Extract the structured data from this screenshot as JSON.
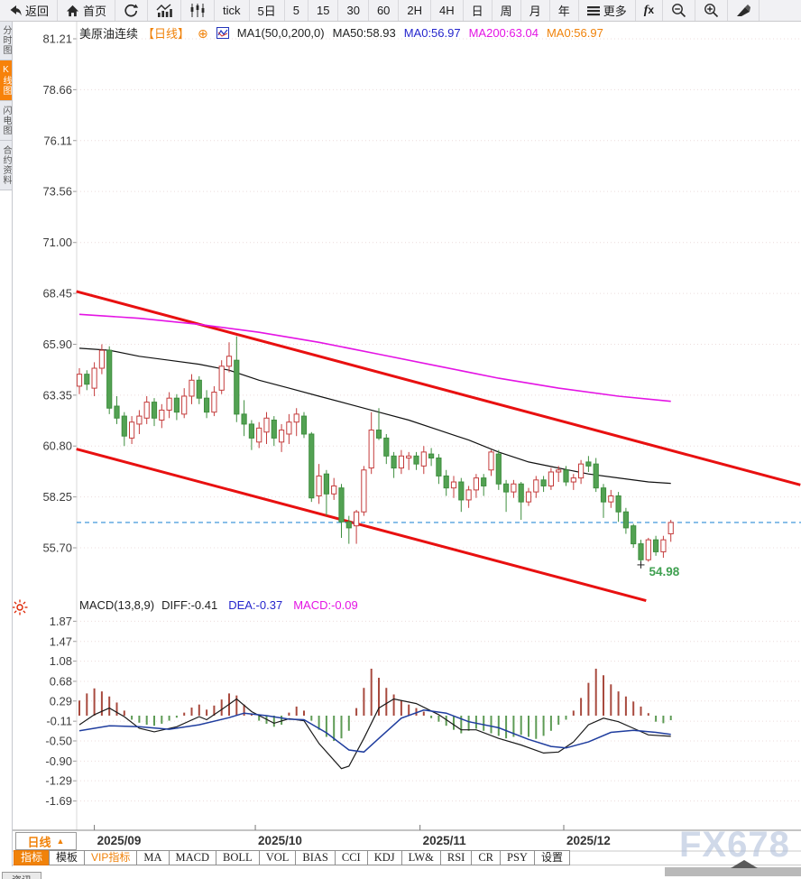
{
  "window": {
    "watermark": "FX678"
  },
  "toolbar": {
    "items": [
      {
        "name": "back",
        "icon": "back-arrow",
        "label": "返回"
      },
      {
        "name": "home",
        "icon": "home-icon",
        "label": "首页"
      },
      {
        "name": "refresh",
        "icon": "refresh-icon",
        "label": ""
      },
      {
        "name": "trend-chart",
        "icon": "bar-chart-icon",
        "label": ""
      },
      {
        "name": "candlestick-view",
        "icon": "candles-icon",
        "label": ""
      },
      {
        "name": "tick",
        "icon": "",
        "label": "tick"
      },
      {
        "name": "5-day",
        "icon": "",
        "label": "5日"
      },
      {
        "name": "5-min",
        "icon": "",
        "label": "5"
      },
      {
        "name": "15-min",
        "icon": "",
        "label": "15"
      },
      {
        "name": "30-min",
        "icon": "",
        "label": "30"
      },
      {
        "name": "60-min",
        "icon": "",
        "label": "60"
      },
      {
        "name": "2-hour",
        "icon": "",
        "label": "2H"
      },
      {
        "name": "4-hour",
        "icon": "",
        "label": "4H"
      },
      {
        "name": "daily",
        "icon": "",
        "label": "日"
      },
      {
        "name": "weekly",
        "icon": "",
        "label": "周"
      },
      {
        "name": "monthly",
        "icon": "",
        "label": "月"
      },
      {
        "name": "yearly",
        "icon": "",
        "label": "年"
      },
      {
        "name": "more",
        "icon": "menu-icon",
        "label": "更多"
      },
      {
        "name": "formula",
        "icon": "fx-icon",
        "label": ""
      },
      {
        "name": "zoom-out",
        "icon": "zoom-out-icon",
        "label": ""
      },
      {
        "name": "zoom-in",
        "icon": "zoom-in-icon",
        "label": ""
      },
      {
        "name": "draw-tool",
        "icon": "draw-icon",
        "label": ""
      }
    ]
  },
  "sidebar": {
    "items": [
      {
        "label": "分时图",
        "active": false
      },
      {
        "label": "K线图",
        "active": true
      },
      {
        "label": "闪电图",
        "active": false
      },
      {
        "label": "合约资料",
        "active": false
      }
    ]
  },
  "chart_header": {
    "symbol": "美原油连续",
    "period_tag": "【日线】",
    "ma_formula": "MA1(50,0,200,0)",
    "ma50_label": "MA50:58.93",
    "ma0_blue_label": "MA0:56.97",
    "ma200_label": "MA200:63.04",
    "ma0_orange_label": "MA0:56.97"
  },
  "macd_header": {
    "formula": "MACD(13,8,9)",
    "diff_label": "DIFF:-0.41",
    "dea_label": "DEA:-0.37",
    "macd_label": "MACD:-0.09"
  },
  "bottom": {
    "period_selector": "日线",
    "period_arrow": "▲",
    "news_tab": "资讯",
    "tabs": [
      {
        "label": "指标",
        "style": "active"
      },
      {
        "label": "模板",
        "style": ""
      },
      {
        "label": "VIP指标",
        "style": "orange"
      },
      {
        "label": "MA",
        "style": ""
      },
      {
        "label": "MACD",
        "style": ""
      },
      {
        "label": "BOLL",
        "style": ""
      },
      {
        "label": "VOL",
        "style": ""
      },
      {
        "label": "BIAS",
        "style": ""
      },
      {
        "label": "CCI",
        "style": ""
      },
      {
        "label": "KDJ",
        "style": ""
      },
      {
        "label": "LW&",
        "style": ""
      },
      {
        "label": "RSI",
        "style": ""
      },
      {
        "label": "CR",
        "style": ""
      },
      {
        "label": "PSY",
        "style": ""
      },
      {
        "label": "设置",
        "style": ""
      }
    ]
  },
  "colors": {
    "accent_orange": "#f0820a",
    "candle_up": "#c43c3c",
    "candle_down": "#53a253",
    "trend_line": "#e81010",
    "ma50": "#111111",
    "ma200": "#e414e4",
    "dea_line": "#1f3d9e",
    "diff_line": "#1a1a1a",
    "current_price_line": "#2d8ed6",
    "low_label": "#3fa050"
  },
  "chart_data": {
    "type": "candlestick",
    "title": "美原油连续 日线 (US Crude Oil Continuous, Daily)",
    "price_axis_ticks": [
      81.21,
      78.66,
      76.11,
      73.56,
      71.0,
      68.45,
      65.9,
      63.35,
      60.8,
      58.25,
      55.7
    ],
    "macd_axis_ticks": [
      1.87,
      1.47,
      1.08,
      0.68,
      0.29,
      -0.11,
      -0.5,
      -0.9,
      -1.29,
      -1.69
    ],
    "x_labels": [
      {
        "text": "2025/09",
        "index": 2
      },
      {
        "text": "2025/10",
        "index": 23.5
      },
      {
        "text": "2025/11",
        "index": 45.5
      },
      {
        "text": "2025/12",
        "index": 64.7
      }
    ],
    "current_price": 56.97,
    "low_marker": {
      "index": 75,
      "price": 54.98,
      "label": "54.98"
    },
    "candles": [
      [
        63.8,
        64.7,
        63.4,
        64.4
      ],
      [
        64.4,
        64.6,
        63.6,
        63.9
      ],
      [
        63.7,
        65.0,
        63.3,
        64.7
      ],
      [
        64.7,
        65.9,
        64.4,
        65.6
      ],
      [
        65.6,
        65.8,
        62.4,
        62.7
      ],
      [
        62.8,
        63.3,
        61.9,
        62.2
      ],
      [
        62.3,
        62.5,
        60.8,
        61.3
      ],
      [
        61.2,
        62.3,
        60.9,
        62.0
      ],
      [
        61.9,
        62.6,
        61.4,
        62.3
      ],
      [
        62.2,
        63.3,
        61.9,
        63.0
      ],
      [
        63.0,
        63.2,
        61.8,
        62.2
      ],
      [
        62.1,
        62.9,
        61.7,
        62.6
      ],
      [
        62.6,
        63.5,
        62.2,
        63.2
      ],
      [
        63.2,
        63.4,
        62.1,
        62.5
      ],
      [
        62.4,
        63.7,
        62.2,
        63.3
      ],
      [
        63.3,
        64.4,
        62.9,
        64.1
      ],
      [
        64.1,
        64.3,
        62.9,
        63.2
      ],
      [
        63.2,
        63.6,
        62.2,
        62.5
      ],
      [
        62.5,
        63.8,
        62.3,
        63.5
      ],
      [
        63.6,
        65.1,
        63.4,
        64.8
      ],
      [
        64.8,
        66.0,
        64.5,
        65.3
      ],
      [
        65.1,
        66.3,
        62.0,
        62.4
      ],
      [
        62.4,
        63.1,
        61.3,
        61.9
      ],
      [
        61.9,
        62.1,
        60.6,
        61.2
      ],
      [
        61.0,
        62.0,
        60.7,
        61.7
      ],
      [
        61.5,
        62.5,
        60.9,
        62.2
      ],
      [
        62.1,
        62.3,
        60.8,
        61.2
      ],
      [
        61.0,
        61.9,
        60.5,
        61.6
      ],
      [
        61.4,
        62.4,
        60.9,
        62.0
      ],
      [
        62.0,
        62.7,
        61.3,
        62.4
      ],
      [
        62.3,
        62.5,
        61.2,
        61.4
      ],
      [
        61.4,
        61.5,
        58.0,
        58.2
      ],
      [
        58.3,
        59.9,
        57.9,
        59.3
      ],
      [
        59.4,
        59.6,
        57.3,
        58.4
      ],
      [
        58.4,
        59.2,
        58.1,
        58.8
      ],
      [
        58.7,
        58.9,
        56.2,
        57.0
      ],
      [
        57.0,
        57.3,
        55.9,
        56.7
      ],
      [
        56.8,
        57.6,
        55.9,
        57.5
      ],
      [
        57.5,
        59.8,
        57.3,
        59.6
      ],
      [
        59.7,
        62.5,
        59.4,
        61.6
      ],
      [
        61.6,
        62.7,
        61.1,
        61.2
      ],
      [
        61.2,
        61.4,
        59.9,
        60.3
      ],
      [
        60.3,
        60.5,
        59.2,
        59.7
      ],
      [
        59.7,
        60.6,
        59.4,
        60.3
      ],
      [
        60.2,
        60.5,
        59.6,
        60.3
      ],
      [
        60.3,
        60.5,
        59.6,
        59.9
      ],
      [
        59.8,
        60.8,
        59.4,
        60.5
      ],
      [
        60.4,
        60.7,
        59.8,
        60.2
      ],
      [
        60.2,
        60.4,
        58.9,
        59.3
      ],
      [
        59.3,
        59.6,
        58.3,
        58.7
      ],
      [
        58.7,
        59.3,
        58.2,
        59.0
      ],
      [
        59.0,
        59.2,
        57.5,
        58.1
      ],
      [
        58.1,
        58.8,
        57.7,
        58.6
      ],
      [
        58.6,
        59.4,
        58.2,
        59.2
      ],
      [
        59.2,
        59.4,
        58.3,
        58.8
      ],
      [
        59.6,
        60.6,
        59.3,
        60.5
      ],
      [
        60.4,
        60.6,
        58.6,
        58.9
      ],
      [
        58.9,
        59.1,
        57.5,
        58.5
      ],
      [
        58.5,
        59.1,
        58.2,
        58.9
      ],
      [
        58.9,
        59.0,
        57.1,
        58.0
      ],
      [
        58.0,
        58.7,
        57.8,
        58.5
      ],
      [
        58.5,
        59.3,
        58.2,
        59.1
      ],
      [
        59.1,
        59.3,
        58.5,
        58.8
      ],
      [
        58.8,
        59.7,
        58.6,
        59.5
      ],
      [
        59.5,
        59.8,
        59.0,
        59.6
      ],
      [
        59.6,
        59.8,
        58.8,
        59.0
      ],
      [
        59.0,
        59.4,
        58.6,
        59.2
      ],
      [
        59.2,
        60.1,
        58.9,
        59.9
      ],
      [
        60.0,
        60.3,
        59.5,
        59.8
      ],
      [
        59.9,
        60.2,
        58.5,
        58.7
      ],
      [
        58.7,
        58.9,
        57.2,
        58.0
      ],
      [
        58.0,
        58.6,
        57.7,
        58.3
      ],
      [
        58.3,
        58.5,
        57.0,
        57.5
      ],
      [
        57.5,
        57.7,
        56.4,
        56.7
      ],
      [
        56.8,
        56.9,
        55.7,
        55.9
      ],
      [
        55.9,
        56.1,
        54.98,
        55.1
      ],
      [
        55.1,
        56.2,
        55.0,
        56.1
      ],
      [
        56.1,
        56.3,
        55.3,
        55.5
      ],
      [
        55.5,
        56.3,
        55.2,
        56.1
      ],
      [
        56.4,
        57.1,
        56.0,
        56.97
      ]
    ],
    "ma50_points": [
      [
        0,
        65.7
      ],
      [
        4,
        65.6
      ],
      [
        8,
        65.3
      ],
      [
        12,
        65.1
      ],
      [
        16,
        64.9
      ],
      [
        20,
        64.6
      ],
      [
        24,
        64.1
      ],
      [
        28,
        63.7
      ],
      [
        32,
        63.3
      ],
      [
        36,
        62.9
      ],
      [
        40,
        62.5
      ],
      [
        44,
        62.1
      ],
      [
        48,
        61.6
      ],
      [
        52,
        61.1
      ],
      [
        56,
        60.5
      ],
      [
        60,
        60.0
      ],
      [
        64,
        59.7
      ],
      [
        68,
        59.4
      ],
      [
        72,
        59.2
      ],
      [
        76,
        59.0
      ],
      [
        79,
        58.93
      ]
    ],
    "ma200_points": [
      [
        0,
        67.4
      ],
      [
        8,
        67.2
      ],
      [
        16,
        66.9
      ],
      [
        24,
        66.5
      ],
      [
        32,
        66.0
      ],
      [
        40,
        65.4
      ],
      [
        48,
        64.8
      ],
      [
        56,
        64.2
      ],
      [
        64,
        63.7
      ],
      [
        72,
        63.3
      ],
      [
        79,
        63.04
      ]
    ],
    "trend_channel": {
      "upper": [
        [
          -0.4,
          68.55
        ],
        [
          96.3,
          58.85
        ]
      ],
      "lower": [
        [
          -0.4,
          60.65
        ],
        [
          75.7,
          53.05
        ]
      ]
    },
    "macd": {
      "hist": [
        0.3,
        0.44,
        0.54,
        0.48,
        0.38,
        0.26,
        0.1,
        -0.08,
        -0.14,
        -0.18,
        -0.2,
        -0.16,
        -0.1,
        -0.04,
        0.06,
        0.16,
        0.22,
        0.12,
        0.2,
        0.32,
        0.44,
        0.4,
        0.22,
        0.04,
        -0.1,
        -0.16,
        -0.22,
        -0.18,
        0.06,
        0.18,
        0.1,
        -0.1,
        -0.28,
        -0.42,
        -0.5,
        -0.45,
        -0.3,
        0.15,
        0.55,
        0.93,
        0.75,
        0.55,
        0.42,
        0.3,
        0.22,
        0.15,
        0.08,
        -0.05,
        -0.12,
        -0.2,
        -0.28,
        -0.35,
        -0.3,
        -0.26,
        -0.3,
        -0.35,
        -0.4,
        -0.45,
        -0.42,
        -0.38,
        -0.42,
        -0.46,
        -0.4,
        -0.3,
        -0.18,
        -0.08,
        0.1,
        0.35,
        0.65,
        0.93,
        0.8,
        0.62,
        0.48,
        0.38,
        0.28,
        0.18,
        0.05,
        -0.12,
        -0.15,
        -0.09
      ],
      "diff_points": [
        [
          0,
          -0.18
        ],
        [
          2,
          0.02
        ],
        [
          4,
          0.15
        ],
        [
          6,
          -0.02
        ],
        [
          8,
          -0.25
        ],
        [
          10,
          -0.32
        ],
        [
          13,
          -0.22
        ],
        [
          16,
          -0.02
        ],
        [
          17,
          -0.08
        ],
        [
          19,
          0.12
        ],
        [
          21,
          0.33
        ],
        [
          23,
          0.08
        ],
        [
          26,
          -0.15
        ],
        [
          28,
          -0.06
        ],
        [
          30,
          -0.1
        ],
        [
          32,
          -0.55
        ],
        [
          35,
          -1.05
        ],
        [
          36,
          -1.0
        ],
        [
          38,
          -0.45
        ],
        [
          40,
          0.15
        ],
        [
          42,
          0.33
        ],
        [
          45,
          0.24
        ],
        [
          48,
          0.02
        ],
        [
          51,
          -0.28
        ],
        [
          53,
          -0.28
        ],
        [
          56,
          -0.45
        ],
        [
          59,
          -0.58
        ],
        [
          62,
          -0.74
        ],
        [
          64,
          -0.72
        ],
        [
          66,
          -0.52
        ],
        [
          68,
          -0.18
        ],
        [
          70,
          -0.05
        ],
        [
          72,
          -0.12
        ],
        [
          74,
          -0.25
        ],
        [
          76,
          -0.38
        ],
        [
          79,
          -0.41
        ]
      ],
      "dea_points": [
        [
          0,
          -0.3
        ],
        [
          4,
          -0.2
        ],
        [
          8,
          -0.22
        ],
        [
          12,
          -0.27
        ],
        [
          16,
          -0.18
        ],
        [
          20,
          -0.04
        ],
        [
          22,
          0.05
        ],
        [
          25,
          0.0
        ],
        [
          28,
          -0.07
        ],
        [
          30,
          -0.08
        ],
        [
          33,
          -0.34
        ],
        [
          36,
          -0.68
        ],
        [
          38,
          -0.72
        ],
        [
          40,
          -0.45
        ],
        [
          43,
          -0.05
        ],
        [
          46,
          0.11
        ],
        [
          49,
          0.05
        ],
        [
          52,
          -0.12
        ],
        [
          56,
          -0.24
        ],
        [
          60,
          -0.47
        ],
        [
          63,
          -0.61
        ],
        [
          65,
          -0.64
        ],
        [
          68,
          -0.52
        ],
        [
          71,
          -0.33
        ],
        [
          74,
          -0.29
        ],
        [
          77,
          -0.33
        ],
        [
          79,
          -0.37
        ]
      ]
    }
  }
}
